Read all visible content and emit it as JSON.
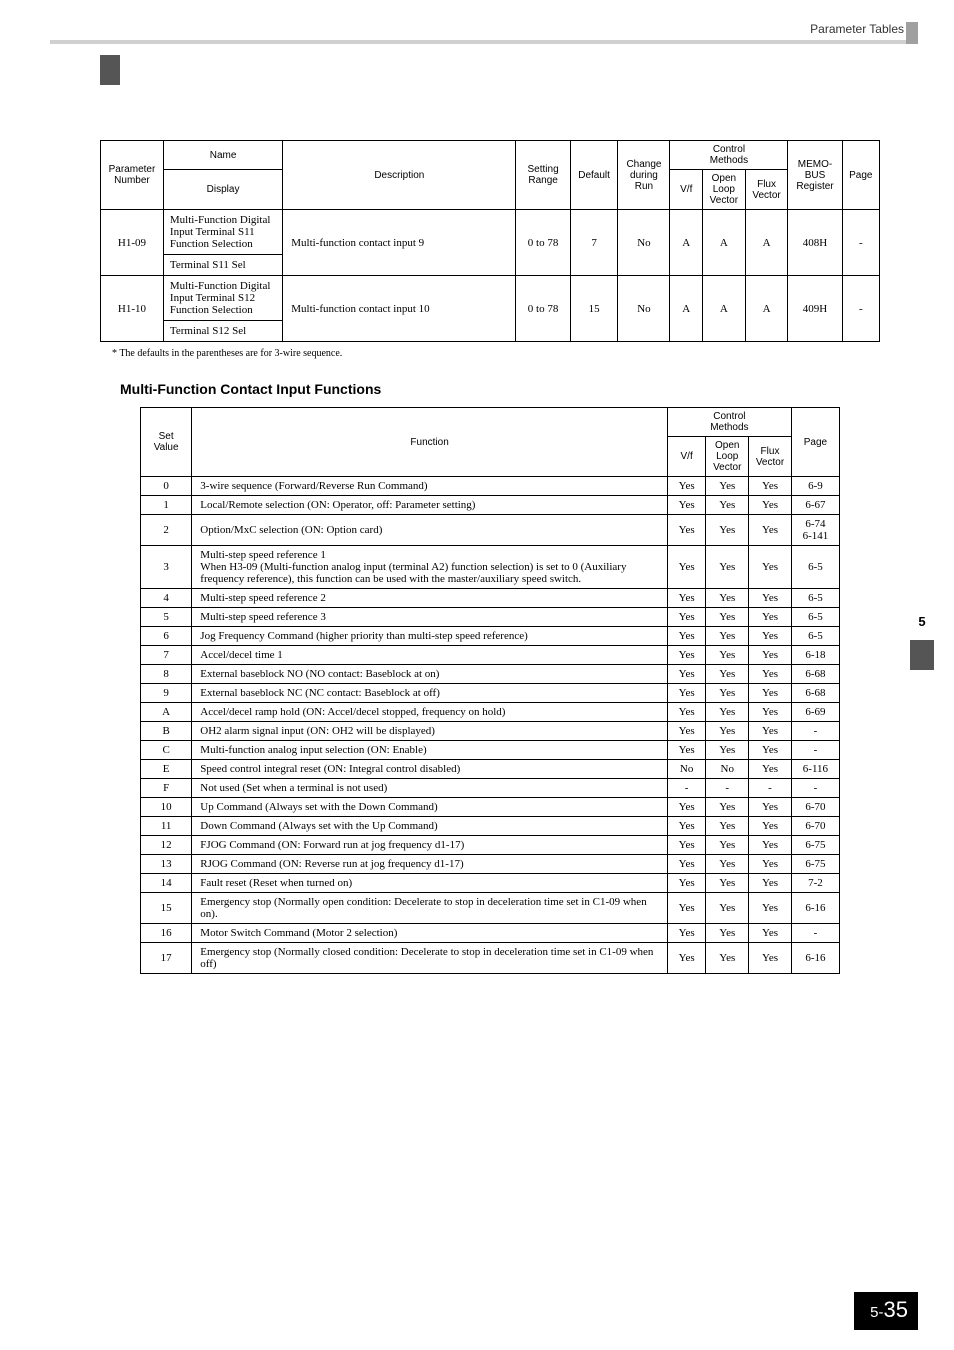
{
  "header": {
    "title": "Parameter Tables"
  },
  "side_tab": "5",
  "footer": {
    "chapter": "5-",
    "page": "35"
  },
  "table1": {
    "headers": {
      "param_number": "Parameter\nNumber",
      "name": "Name",
      "display": "Display",
      "description": "Description",
      "setting_range": "Setting\nRange",
      "default": "Default",
      "change_run": "Change\nduring\nRun",
      "control_methods": "Control\nMethods",
      "vf": "V/f",
      "open_loop": "Open\nLoop\nVector",
      "flux_vector": "Flux\nVector",
      "memobus": "MEMO-\nBUS\nRegister",
      "page": "Page"
    },
    "rows": [
      {
        "number": "H1-09",
        "name": "Multi-Function Digital Input Terminal S11 Function Selection",
        "display": "Terminal S11 Sel",
        "description": "Multi-function contact input 9",
        "range": "0 to 78",
        "default": "7",
        "change": "No",
        "vf": "A",
        "ol": "A",
        "fv": "A",
        "register": "408H",
        "page": "-"
      },
      {
        "number": "H1-10",
        "name": "Multi-Function Digital Input Terminal S12 Function Selection",
        "display": "Terminal S12 Sel",
        "description": "Multi-function contact input 10",
        "range": "0 to 78",
        "default": "15",
        "change": "No",
        "vf": "A",
        "ol": "A",
        "fv": "A",
        "register": "409H",
        "page": "-"
      }
    ],
    "footnote": "*   The defaults in the parentheses are for 3-wire sequence."
  },
  "section_title": "Multi-Function Contact Input Functions",
  "table2": {
    "headers": {
      "set_value": "Set\nValue",
      "function": "Function",
      "control_methods": "Control\nMethods",
      "vf": "V/f",
      "open_loop": "Open\nLoop\nVector",
      "flux_vector": "Flux\nVector",
      "page": "Page"
    },
    "rows": [
      {
        "v": "0",
        "fn": "3-wire sequence (Forward/Reverse Run Command)",
        "vf": "Yes",
        "ol": "Yes",
        "fv": "Yes",
        "pg": "6-9"
      },
      {
        "v": "1",
        "fn": "Local/Remote selection (ON: Operator, off: Parameter setting)",
        "vf": "Yes",
        "ol": "Yes",
        "fv": "Yes",
        "pg": "6-67"
      },
      {
        "v": "2",
        "fn": "Option/MxC selection (ON: Option card)",
        "vf": "Yes",
        "ol": "Yes",
        "fv": "Yes",
        "pg": "6-74\n6-141"
      },
      {
        "v": "3",
        "fn": "Multi-step speed reference 1\nWhen H3-09 (Multi-function analog input (terminal A2) function selection) is set to 0 (Auxiliary frequency reference), this function can be used with the master/auxiliary speed switch.",
        "vf": "Yes",
        "ol": "Yes",
        "fv": "Yes",
        "pg": "6-5"
      },
      {
        "v": "4",
        "fn": "Multi-step speed reference 2",
        "vf": "Yes",
        "ol": "Yes",
        "fv": "Yes",
        "pg": "6-5"
      },
      {
        "v": "5",
        "fn": "Multi-step speed reference 3",
        "vf": "Yes",
        "ol": "Yes",
        "fv": "Yes",
        "pg": "6-5"
      },
      {
        "v": "6",
        "fn": "Jog Frequency Command (higher priority than multi-step speed reference)",
        "vf": "Yes",
        "ol": "Yes",
        "fv": "Yes",
        "pg": "6-5"
      },
      {
        "v": "7",
        "fn": "Accel/decel time 1",
        "vf": "Yes",
        "ol": "Yes",
        "fv": "Yes",
        "pg": "6-18"
      },
      {
        "v": "8",
        "fn": "External baseblock NO (NO contact: Baseblock at on)",
        "vf": "Yes",
        "ol": "Yes",
        "fv": "Yes",
        "pg": "6-68"
      },
      {
        "v": "9",
        "fn": "External baseblock NC (NC contact: Baseblock at off)",
        "vf": "Yes",
        "ol": "Yes",
        "fv": "Yes",
        "pg": "6-68"
      },
      {
        "v": "A",
        "fn": "Accel/decel ramp hold (ON: Accel/decel stopped, frequency on hold)",
        "vf": "Yes",
        "ol": "Yes",
        "fv": "Yes",
        "pg": "6-69"
      },
      {
        "v": "B",
        "fn": "OH2 alarm signal input (ON: OH2 will be displayed)",
        "vf": "Yes",
        "ol": "Yes",
        "fv": "Yes",
        "pg": "-"
      },
      {
        "v": "C",
        "fn": "Multi-function analog input selection (ON: Enable)",
        "vf": "Yes",
        "ol": "Yes",
        "fv": "Yes",
        "pg": "-"
      },
      {
        "v": "E",
        "fn": "Speed control integral reset (ON: Integral control disabled)",
        "vf": "No",
        "ol": "No",
        "fv": "Yes",
        "pg": "6-116"
      },
      {
        "v": "F",
        "fn": "Not used (Set when a terminal is not used)",
        "vf": "-",
        "ol": "-",
        "fv": "-",
        "pg": "-"
      },
      {
        "v": "10",
        "fn": "Up Command (Always set with the Down Command)",
        "vf": "Yes",
        "ol": "Yes",
        "fv": "Yes",
        "pg": "6-70"
      },
      {
        "v": "11",
        "fn": "Down Command (Always set with the Up Command)",
        "vf": "Yes",
        "ol": "Yes",
        "fv": "Yes",
        "pg": "6-70"
      },
      {
        "v": "12",
        "fn": "FJOG Command (ON: Forward run at jog frequency d1-17)",
        "vf": "Yes",
        "ol": "Yes",
        "fv": "Yes",
        "pg": "6-75"
      },
      {
        "v": "13",
        "fn": "RJOG Command (ON: Reverse run at jog frequency d1-17)",
        "vf": "Yes",
        "ol": "Yes",
        "fv": "Yes",
        "pg": "6-75"
      },
      {
        "v": "14",
        "fn": "Fault reset (Reset when turned on)",
        "vf": "Yes",
        "ol": "Yes",
        "fv": "Yes",
        "pg": "7-2"
      },
      {
        "v": "15",
        "fn": "Emergency stop (Normally open condition: Decelerate to stop in deceleration time set in C1-09 when on).",
        "vf": "Yes",
        "ol": "Yes",
        "fv": "Yes",
        "pg": "6-16"
      },
      {
        "v": "16",
        "fn": "Motor Switch Command (Motor 2 selection)",
        "vf": "Yes",
        "ol": "Yes",
        "fv": "Yes",
        "pg": "-"
      },
      {
        "v": "17",
        "fn": "Emergency stop (Normally closed condition: Decelerate to stop in deceleration time set in C1-09 when off)",
        "vf": "Yes",
        "ol": "Yes",
        "fv": "Yes",
        "pg": "6-16"
      }
    ]
  }
}
